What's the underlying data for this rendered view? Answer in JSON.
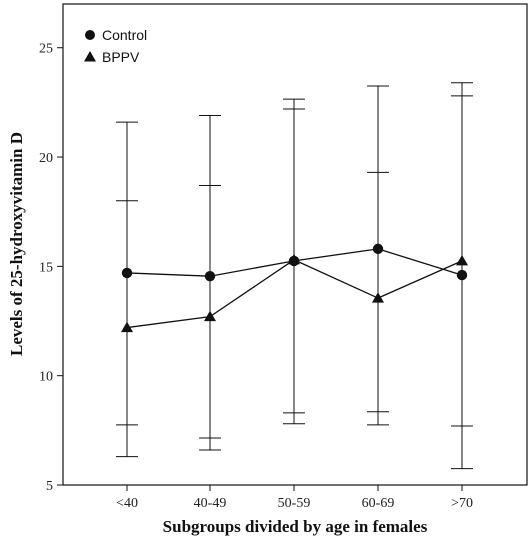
{
  "chart_data": {
    "type": "line",
    "title": "",
    "xlabel": "Subgroups divided by age in females",
    "ylabel": "Levels of 25-hydroxyvitamin D",
    "categories": [
      "<40",
      "40-49",
      "50-59",
      "60-69",
      ">70"
    ],
    "ylim": [
      5,
      27
    ],
    "yticks": [
      5,
      10,
      15,
      20,
      25
    ],
    "grid": false,
    "legend_position": "top-left",
    "series": [
      {
        "name": "Control",
        "marker": "circle",
        "color": "#111111",
        "values": [
          14.7,
          14.55,
          15.25,
          15.8,
          14.6
        ],
        "error_low": [
          7.75,
          7.15,
          8.3,
          8.35,
          5.75
        ],
        "error_high": [
          21.6,
          21.9,
          22.2,
          23.25,
          23.4
        ]
      },
      {
        "name": "BPPV",
        "marker": "triangle",
        "color": "#111111",
        "values": [
          12.2,
          12.7,
          15.3,
          13.55,
          15.25
        ],
        "error_low": [
          6.3,
          6.6,
          7.8,
          7.75,
          7.7
        ],
        "error_high": [
          18.0,
          18.7,
          22.65,
          19.3,
          22.8
        ]
      }
    ]
  }
}
